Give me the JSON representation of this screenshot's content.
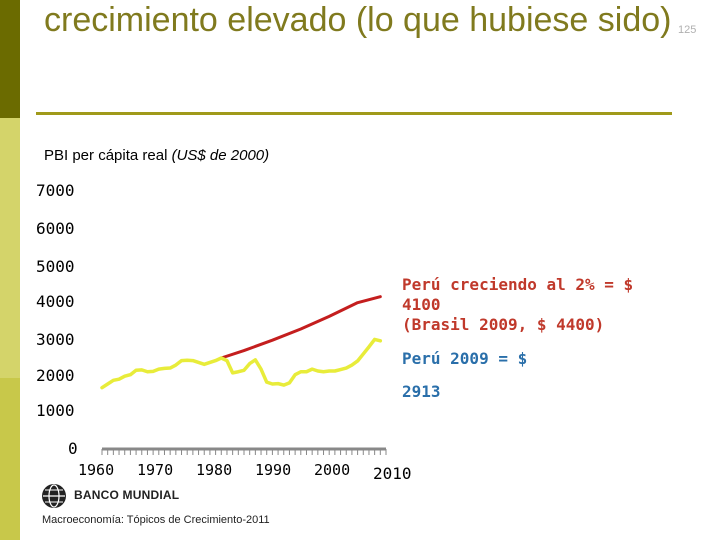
{
  "slide": {
    "title": "crecimiento elevado (lo que hubiese sido)",
    "slide_number": "125",
    "footer": "Macroeconomía: Tópicos de Crecimiento-2011",
    "logo_text": "BANCO MUNDIAL"
  },
  "colors": {
    "accent_dark": "#6b6b00",
    "accent_light": "#c8c84a",
    "actual_series": "#e8ec3a",
    "counterfactual_series": "#c41e1e",
    "annotation_red": "#c0392b",
    "annotation_blue": "#2a6faa"
  },
  "chart_data": {
    "type": "line",
    "title": "PBI per cápita real",
    "title_units": "(US$ de 2000)",
    "xlabel": "",
    "ylabel": "",
    "xlim": [
      1960,
      2010
    ],
    "ylim": [
      0,
      7000
    ],
    "yticks": [
      0,
      1000,
      2000,
      3000,
      4000,
      5000,
      6000,
      7000
    ],
    "xticks": [
      1960,
      1970,
      1980,
      1990,
      2000,
      2010
    ],
    "series": [
      {
        "name": "Perú PBI per cápita real",
        "x": [
          1960,
          1961,
          1962,
          1963,
          1964,
          1965,
          1966,
          1967,
          1968,
          1969,
          1970,
          1971,
          1972,
          1973,
          1974,
          1975,
          1976,
          1977,
          1978,
          1979,
          1980,
          1981,
          1982,
          1983,
          1984,
          1985,
          1986,
          1987,
          1988,
          1989,
          1990,
          1991,
          1992,
          1993,
          1994,
          1995,
          1996,
          1997,
          1998,
          1999,
          2000,
          2001,
          2002,
          2003,
          2004,
          2005,
          2006,
          2007,
          2008,
          2009
        ],
        "values": [
          1650,
          1750,
          1850,
          1880,
          1960,
          2000,
          2120,
          2130,
          2080,
          2090,
          2150,
          2170,
          2180,
          2260,
          2380,
          2390,
          2380,
          2330,
          2280,
          2330,
          2380,
          2450,
          2380,
          2050,
          2080,
          2120,
          2300,
          2400,
          2150,
          1800,
          1750,
          1760,
          1720,
          1780,
          2000,
          2080,
          2080,
          2150,
          2100,
          2080,
          2100,
          2100,
          2140,
          2180,
          2260,
          2370,
          2560,
          2750,
          2950,
          2913
        ]
      },
      {
        "name": "Perú creciendo al 2%",
        "x": [
          1981,
          1985,
          1990,
          1995,
          2000,
          2005,
          2009
        ],
        "values": [
          2450,
          2650,
          2930,
          3230,
          3570,
          3940,
          4100
        ]
      }
    ],
    "annotations": [
      {
        "text_line1": "Perú creciendo al 2% = $",
        "text_line2": "4100",
        "text_line3": "(Brasil 2009, $ 4400)"
      },
      {
        "text_line1": "Perú 2009 = $",
        "text_line2": "2913"
      }
    ]
  }
}
